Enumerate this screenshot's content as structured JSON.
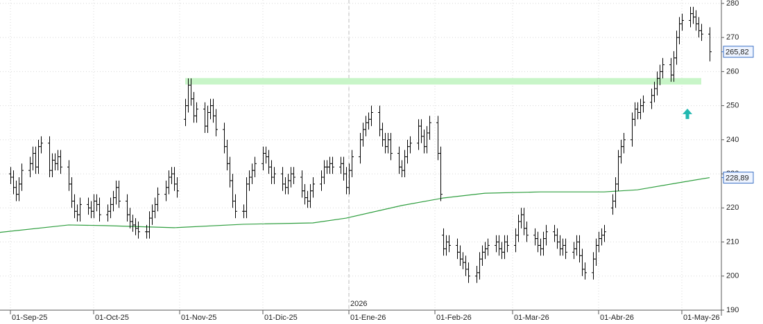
{
  "chart_data": {
    "type": "ohlc",
    "x": [
      0,
      1,
      2,
      3,
      4,
      7,
      8,
      9,
      10,
      11,
      14,
      15,
      16,
      17,
      18,
      21,
      22,
      23,
      24,
      25,
      28,
      29,
      30,
      31,
      32,
      35,
      36,
      37,
      38,
      39,
      42,
      43,
      44,
      45,
      46,
      49,
      50,
      51,
      52,
      53,
      56,
      57,
      58,
      59,
      60,
      63,
      64,
      65,
      66,
      67,
      70,
      71,
      72,
      73,
      74,
      77,
      78,
      79,
      80,
      81,
      84,
      85,
      86,
      87,
      88,
      91,
      92,
      93,
      94,
      95,
      98,
      99,
      100,
      101,
      102,
      105,
      106,
      107,
      108,
      109,
      112,
      113,
      114,
      115,
      116,
      119,
      120,
      121,
      122,
      123,
      126,
      127,
      128,
      129,
      130,
      133,
      134,
      135,
      136,
      137,
      140,
      141,
      142,
      143,
      144,
      147,
      148,
      149,
      150,
      151,
      154,
      155,
      156,
      157,
      158,
      161,
      162,
      163,
      164,
      165,
      168,
      169,
      170,
      171,
      172,
      175,
      176,
      177,
      178,
      179,
      182,
      183,
      184,
      185,
      186,
      189,
      190,
      191,
      192,
      193,
      196,
      197,
      198,
      199,
      200,
      203,
      204,
      205,
      206,
      207,
      210,
      211,
      212,
      213,
      214,
      217,
      218,
      219,
      220,
      221,
      224,
      225,
      226,
      227,
      228,
      231,
      232,
      233,
      234,
      235,
      238,
      239,
      240,
      241,
      242,
      245,
      246,
      247,
      248,
      249,
      252
    ],
    "open": [
      230,
      229,
      226,
      224,
      227,
      231,
      233,
      236,
      232,
      238,
      239,
      231,
      234,
      233,
      235,
      232,
      227,
      222,
      219,
      218,
      221,
      220,
      219,
      222,
      221,
      218,
      219,
      221,
      223,
      226,
      222,
      218,
      216,
      215,
      214,
      213,
      213,
      217,
      219,
      221,
      224,
      226,
      229,
      230,
      227,
      246,
      250,
      256,
      252,
      247,
      249,
      244,
      248,
      250,
      247,
      243,
      238,
      233,
      228,
      222,
      219,
      219,
      227,
      229,
      231,
      233,
      236,
      235,
      232,
      229,
      230,
      227,
      226,
      228,
      230,
      229,
      225,
      223,
      222,
      225,
      227,
      229,
      232,
      232,
      233,
      232,
      233,
      230,
      226,
      231,
      235,
      240,
      243,
      245,
      246,
      248,
      243,
      240,
      238,
      240,
      236,
      232,
      231,
      235,
      238,
      239,
      244,
      241,
      238,
      242,
      245,
      236,
      212,
      208,
      210,
      209,
      207,
      205,
      204,
      202,
      200,
      201,
      205,
      207,
      208,
      209,
      210,
      208,
      207,
      210,
      209,
      212,
      216,
      218,
      214,
      212,
      211,
      209,
      208,
      211,
      213,
      212,
      210,
      208,
      209,
      207,
      208,
      210,
      206,
      202,
      201,
      205,
      209,
      211,
      212,
      220,
      222,
      227,
      235,
      238,
      240,
      246,
      249,
      248,
      250,
      251,
      253,
      255,
      258,
      260,
      262,
      259,
      264,
      270,
      274,
      275,
      277,
      276,
      274,
      272,
      271
    ],
    "high": [
      232,
      231,
      228,
      229,
      233,
      235,
      238,
      238,
      240,
      241,
      241,
      236,
      236,
      237,
      237,
      234,
      229,
      224,
      221,
      223,
      223,
      222,
      224,
      224,
      223,
      221,
      223,
      225,
      228,
      228,
      224,
      220,
      218,
      217,
      216,
      215,
      219,
      221,
      223,
      226,
      228,
      231,
      232,
      232,
      229,
      252,
      258,
      258,
      254,
      251,
      251,
      250,
      252,
      252,
      249,
      245,
      240,
      235,
      230,
      224,
      221,
      229,
      231,
      233,
      235,
      238,
      238,
      237,
      234,
      232,
      232,
      229,
      230,
      232,
      232,
      231,
      227,
      225,
      227,
      229,
      231,
      234,
      234,
      235,
      235,
      235,
      235,
      232,
      233,
      237,
      242,
      245,
      247,
      248,
      250,
      250,
      245,
      242,
      242,
      242,
      238,
      234,
      237,
      240,
      241,
      246,
      246,
      243,
      244,
      247,
      247,
      238,
      214,
      212,
      212,
      211,
      209,
      207,
      206,
      204,
      203,
      207,
      209,
      210,
      211,
      212,
      212,
      210,
      212,
      212,
      214,
      218,
      220,
      220,
      216,
      214,
      213,
      211,
      213,
      215,
      215,
      214,
      212,
      211,
      211,
      210,
      212,
      212,
      208,
      204,
      207,
      211,
      213,
      214,
      215,
      224,
      229,
      237,
      240,
      242,
      248,
      251,
      251,
      252,
      253,
      255,
      257,
      260,
      262,
      264,
      264,
      266,
      272,
      276,
      277,
      279,
      279,
      278,
      276,
      274,
      273
    ],
    "low": [
      227,
      224,
      222,
      222,
      225,
      229,
      231,
      230,
      230,
      236,
      229,
      229,
      231,
      231,
      230,
      225,
      220,
      217,
      216,
      216,
      218,
      217,
      217,
      219,
      216,
      216,
      217,
      219,
      221,
      220,
      216,
      214,
      213,
      212,
      211,
      211,
      211,
      215,
      217,
      219,
      222,
      224,
      227,
      225,
      223,
      244,
      248,
      250,
      245,
      245,
      242,
      242,
      246,
      245,
      241,
      236,
      231,
      226,
      220,
      217,
      217,
      217,
      225,
      227,
      229,
      231,
      233,
      230,
      227,
      227,
      225,
      224,
      224,
      226,
      227,
      223,
      221,
      220,
      220,
      223,
      225,
      227,
      230,
      230,
      230,
      230,
      228,
      224,
      224,
      229,
      233,
      238,
      241,
      243,
      244,
      241,
      238,
      236,
      236,
      234,
      230,
      229,
      229,
      233,
      236,
      237,
      239,
      236,
      236,
      240,
      234,
      222,
      206,
      206,
      207,
      205,
      203,
      202,
      200,
      198,
      198,
      199,
      203,
      205,
      206,
      207,
      206,
      205,
      205,
      207,
      207,
      210,
      214,
      212,
      210,
      209,
      207,
      206,
      206,
      209,
      210,
      208,
      206,
      206,
      205,
      205,
      206,
      204,
      200,
      199,
      199,
      203,
      207,
      209,
      210,
      218,
      220,
      225,
      233,
      236,
      238,
      244,
      246,
      246,
      248,
      249,
      251,
      253,
      256,
      258,
      257,
      257,
      262,
      268,
      272,
      273,
      274,
      272,
      270,
      269,
      263
    ],
    "close": [
      229,
      226,
      224,
      227,
      231,
      233,
      236,
      232,
      238,
      239,
      231,
      234,
      233,
      235,
      232,
      227,
      222,
      219,
      218,
      221,
      220,
      219,
      222,
      221,
      218,
      219,
      221,
      223,
      226,
      222,
      218,
      216,
      215,
      214,
      213,
      213,
      217,
      219,
      221,
      224,
      226,
      229,
      230,
      227,
      225,
      250,
      256,
      252,
      247,
      249,
      244,
      248,
      250,
      247,
      243,
      238,
      233,
      228,
      222,
      219,
      219,
      227,
      229,
      231,
      233,
      236,
      235,
      232,
      229,
      230,
      227,
      226,
      228,
      230,
      229,
      225,
      223,
      222,
      225,
      227,
      229,
      232,
      232,
      233,
      232,
      233,
      230,
      226,
      231,
      235,
      240,
      243,
      245,
      246,
      248,
      243,
      240,
      238,
      240,
      236,
      232,
      231,
      235,
      238,
      239,
      244,
      241,
      238,
      242,
      245,
      236,
      224,
      208,
      210,
      209,
      207,
      205,
      204,
      202,
      200,
      201,
      205,
      207,
      208,
      209,
      210,
      208,
      207,
      210,
      209,
      212,
      216,
      218,
      214,
      212,
      211,
      209,
      208,
      211,
      213,
      212,
      210,
      208,
      209,
      207,
      208,
      210,
      206,
      202,
      201,
      205,
      209,
      211,
      212,
      213,
      222,
      227,
      235,
      238,
      240,
      246,
      249,
      248,
      250,
      251,
      253,
      255,
      258,
      260,
      262,
      259,
      264,
      270,
      274,
      275,
      277,
      276,
      274,
      272,
      271,
      265.82
    ],
    "last_label": "265,82",
    "ma": {
      "color": "#2e9e3e",
      "x": [
        -4,
        21,
        34,
        59,
        84,
        109,
        121,
        141,
        156,
        171,
        191,
        214,
        226,
        241,
        252
      ],
      "values": [
        212.8,
        215,
        214.8,
        214.2,
        215.2,
        215.6,
        217,
        220.7,
        222.9,
        224.3,
        224.7,
        224.7,
        225.3,
        227.4,
        228.89
      ],
      "last_label": "228,89"
    },
    "zone": {
      "color": "#c8f5c8",
      "from": 63,
      "to": 249,
      "low": 256.2,
      "high": 258.1
    },
    "arrow": {
      "color": "#22b8b0",
      "x": 244,
      "y": 247.5
    },
    "year_marker": {
      "x": 122,
      "label": "2026"
    },
    "xlim": [
      -3.75,
      256.25
    ],
    "xticks": [
      {
        "value": 0,
        "label": "01-Sep-25"
      },
      {
        "value": 30,
        "label": "01-Oct-25"
      },
      {
        "value": 61,
        "label": "01-Nov-25"
      },
      {
        "value": 91,
        "label": "01-Dic-25"
      },
      {
        "value": 122,
        "label": "01-Ene-26"
      },
      {
        "value": 153,
        "label": "01-Feb-26"
      },
      {
        "value": 181,
        "label": "01-Mar-26"
      },
      {
        "value": 212,
        "label": "01-Abr-26"
      },
      {
        "value": 242,
        "label": "01-May-26"
      }
    ],
    "ylim": [
      190,
      281
    ],
    "yticks": [
      190,
      200,
      210,
      220,
      230,
      240,
      250,
      260,
      270,
      280
    ],
    "grid": true,
    "color": "#000000"
  }
}
